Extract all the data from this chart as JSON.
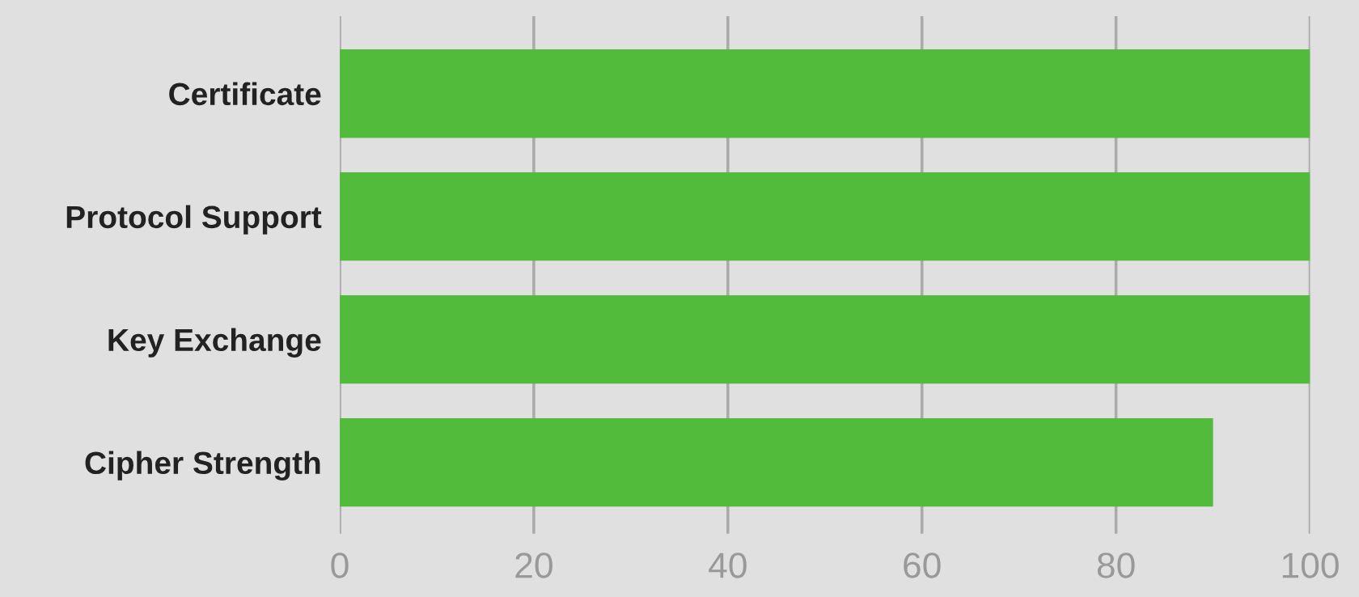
{
  "chart_data": {
    "type": "bar",
    "orientation": "horizontal",
    "categories": [
      "Certificate",
      "Protocol Support",
      "Key Exchange",
      "Cipher Strength"
    ],
    "values": [
      100,
      100,
      100,
      90
    ],
    "color": "#52bb3c",
    "xlim": [
      0,
      100
    ],
    "xticks": [
      0,
      20,
      40,
      60,
      80,
      100
    ],
    "grid": "x"
  }
}
